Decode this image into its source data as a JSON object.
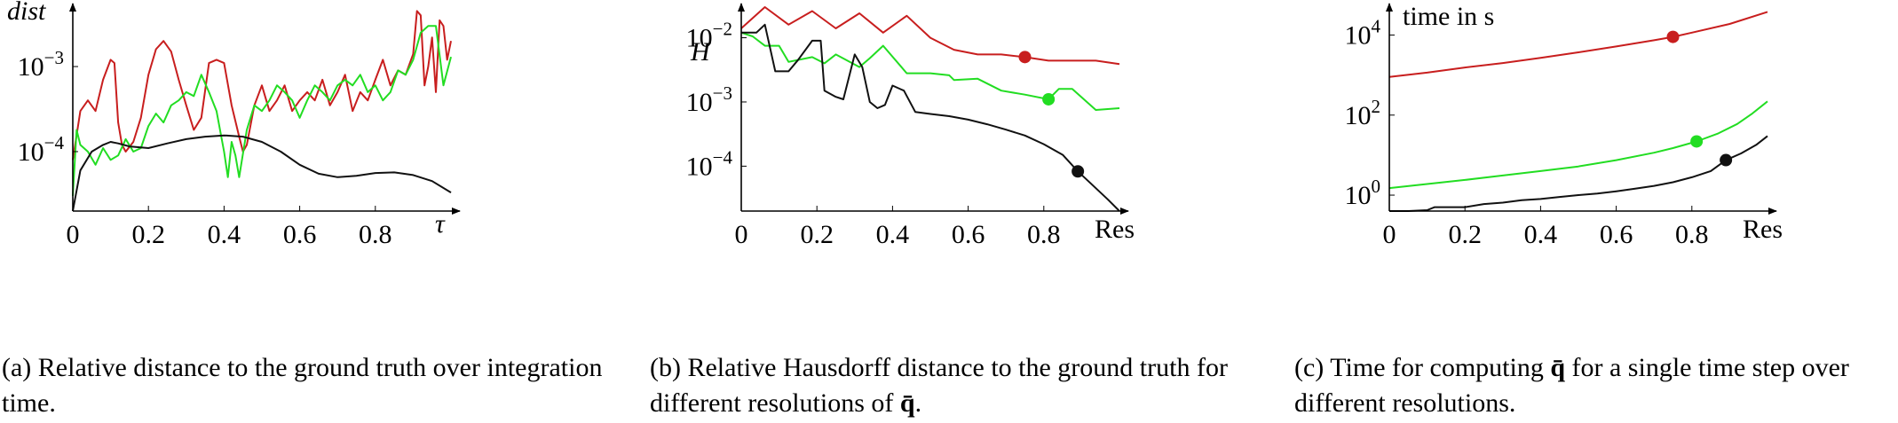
{
  "colors": {
    "red": "#c81e1e",
    "green": "#22dd22",
    "black": "#111111",
    "axis": "#000000"
  },
  "chart_data": [
    {
      "id": "a",
      "type": "line",
      "caption_label": "(a)",
      "caption_text": "Relative distance to the ground truth over integration time.",
      "xlabel": "τ",
      "ylabel": "dist",
      "xscale": "linear",
      "yscale": "log",
      "xlim": [
        0,
        1
      ],
      "ylim": [
        2e-05,
        0.005
      ],
      "xticks": [
        0,
        0.2,
        0.4,
        0.6,
        0.8
      ],
      "xtick_labels": [
        "0",
        "0.2",
        "0.4",
        "0.6",
        "0.8"
      ],
      "yticks": [
        0.0001,
        0.001
      ],
      "ytick_labels": [
        {
          "base": "10",
          "exp": "−4"
        },
        {
          "base": "10",
          "exp": "−3"
        }
      ],
      "series": [
        {
          "color": "red",
          "x": [
            0,
            0.02,
            0.04,
            0.06,
            0.08,
            0.1,
            0.11,
            0.12,
            0.13,
            0.14,
            0.16,
            0.18,
            0.2,
            0.22,
            0.24,
            0.26,
            0.28,
            0.3,
            0.32,
            0.34,
            0.36,
            0.38,
            0.4,
            0.42,
            0.44,
            0.45,
            0.46,
            0.48,
            0.5,
            0.52,
            0.54,
            0.56,
            0.58,
            0.6,
            0.62,
            0.64,
            0.66,
            0.68,
            0.7,
            0.72,
            0.74,
            0.76,
            0.78,
            0.8,
            0.82,
            0.84,
            0.86,
            0.88,
            0.9,
            0.91,
            0.92,
            0.93,
            0.94,
            0.95,
            0.96,
            0.97,
            0.98,
            0.99,
            1.0
          ],
          "y": [
            8e-05,
            0.0003,
            0.0004,
            0.0003,
            0.0007,
            0.0012,
            0.0011,
            0.00022,
            0.00012,
            0.0001,
            0.00013,
            0.00025,
            0.0008,
            0.0016,
            0.002,
            0.0015,
            0.0007,
            0.00035,
            0.00018,
            0.00025,
            0.0011,
            0.0012,
            0.0011,
            0.00035,
            0.00015,
            0.0001,
            0.00012,
            0.00035,
            0.0006,
            0.0003,
            0.0004,
            0.0006,
            0.0003,
            0.0004,
            0.0005,
            0.0004,
            0.0007,
            0.00035,
            0.0005,
            0.0008,
            0.0003,
            0.0005,
            0.0004,
            0.0007,
            0.0012,
            0.0006,
            0.0009,
            0.0008,
            0.0014,
            0.0045,
            0.004,
            0.0006,
            0.001,
            0.0022,
            0.0005,
            0.0035,
            0.003,
            0.0012,
            0.002
          ]
        },
        {
          "color": "green",
          "x": [
            0,
            0.01,
            0.02,
            0.04,
            0.06,
            0.08,
            0.1,
            0.12,
            0.14,
            0.16,
            0.18,
            0.2,
            0.22,
            0.24,
            0.26,
            0.28,
            0.3,
            0.32,
            0.34,
            0.36,
            0.38,
            0.4,
            0.41,
            0.42,
            0.43,
            0.44,
            0.46,
            0.48,
            0.5,
            0.52,
            0.54,
            0.56,
            0.58,
            0.6,
            0.62,
            0.64,
            0.66,
            0.68,
            0.7,
            0.72,
            0.74,
            0.76,
            0.78,
            0.8,
            0.82,
            0.84,
            0.86,
            0.88,
            0.9,
            0.92,
            0.94,
            0.96,
            0.98,
            1.0
          ],
          "y": [
            3e-05,
            0.00018,
            0.00012,
            0.0001,
            7e-05,
            0.00011,
            8e-05,
            9e-05,
            0.00014,
            0.0001,
            0.00011,
            0.0002,
            0.00028,
            0.00022,
            0.00035,
            0.0004,
            0.0005,
            0.00045,
            0.0008,
            0.0005,
            0.0003,
            0.0001,
            5e-05,
            0.00013,
            9e-05,
            5e-05,
            0.00018,
            0.00035,
            0.0003,
            0.0004,
            0.0006,
            0.0005,
            0.0004,
            0.00025,
            0.0004,
            0.0006,
            0.0005,
            0.0004,
            0.0006,
            0.0007,
            0.0006,
            0.0008,
            0.0005,
            0.0006,
            0.0004,
            0.0005,
            0.0009,
            0.0008,
            0.0012,
            0.0025,
            0.003,
            0.003,
            0.0006,
            0.0013
          ]
        },
        {
          "color": "black",
          "x": [
            0,
            0.02,
            0.05,
            0.08,
            0.1,
            0.12,
            0.15,
            0.2,
            0.25,
            0.3,
            0.35,
            0.4,
            0.45,
            0.5,
            0.55,
            0.6,
            0.65,
            0.7,
            0.75,
            0.8,
            0.85,
            0.9,
            0.95,
            1.0
          ],
          "y": [
            2e-05,
            6e-05,
            0.0001,
            0.00012,
            0.00013,
            0.000125,
            0.000115,
            0.00011,
            0.000125,
            0.00014,
            0.00015,
            0.000155,
            0.00015,
            0.00013,
            0.0001,
            7e-05,
            5.5e-05,
            5e-05,
            5.2e-05,
            5.6e-05,
            5.7e-05,
            5.3e-05,
            4.5e-05,
            3.3e-05
          ]
        }
      ]
    },
    {
      "id": "b",
      "type": "line",
      "caption_label": "(b)",
      "caption_text": "Relative Hausdorff distance to the ground truth for different resolutions of",
      "caption_symbol": "q̄̄",
      "caption_end": ".",
      "xlabel": "Res",
      "ylabel": "H",
      "xscale": "linear",
      "yscale": "log",
      "xlim": [
        0,
        1
      ],
      "ylim": [
        2e-05,
        0.03
      ],
      "xticks": [
        0,
        0.2,
        0.4,
        0.6,
        0.8
      ],
      "xtick_labels": [
        "0",
        "0.2",
        "0.4",
        "0.6",
        "0.8"
      ],
      "yticks": [
        0.0001,
        0.001,
        0.01
      ],
      "ytick_labels": [
        {
          "base": "10",
          "exp": "−4"
        },
        {
          "base": "10",
          "exp": "−3"
        },
        {
          "base": "10",
          "exp": "−2"
        }
      ],
      "series": [
        {
          "color": "red",
          "marker_at": 0.75,
          "x": [
            0,
            0.0625,
            0.125,
            0.1875,
            0.25,
            0.3125,
            0.375,
            0.4375,
            0.5,
            0.5625,
            0.625,
            0.6875,
            0.75,
            0.8125,
            0.875,
            0.9375,
            1.0
          ],
          "y": [
            0.014,
            0.03,
            0.016,
            0.026,
            0.014,
            0.024,
            0.012,
            0.022,
            0.01,
            0.0065,
            0.0055,
            0.0055,
            0.005,
            0.0044,
            0.0044,
            0.0044,
            0.0039
          ]
        },
        {
          "color": "green",
          "marker_at": 0.8125,
          "x": [
            0,
            0.03,
            0.0625,
            0.1,
            0.125,
            0.1875,
            0.22,
            0.25,
            0.3125,
            0.34,
            0.375,
            0.4375,
            0.5,
            0.55,
            0.5625,
            0.625,
            0.6875,
            0.75,
            0.8125,
            0.84,
            0.875,
            0.9375,
            1.0
          ],
          "y": [
            0.012,
            0.0105,
            0.0075,
            0.0075,
            0.0042,
            0.005,
            0.004,
            0.0055,
            0.0035,
            0.0048,
            0.0075,
            0.0028,
            0.0028,
            0.0026,
            0.0022,
            0.0023,
            0.0015,
            0.0013,
            0.0011,
            0.0016,
            0.0016,
            0.00075,
            0.0008
          ]
        },
        {
          "color": "black",
          "marker_at": 0.89,
          "x": [
            0,
            0.04,
            0.0625,
            0.09,
            0.125,
            0.15,
            0.1875,
            0.21,
            0.22,
            0.25,
            0.27,
            0.3,
            0.32,
            0.34,
            0.36,
            0.38,
            0.4,
            0.43,
            0.46,
            0.5,
            0.55,
            0.6,
            0.65,
            0.7,
            0.75,
            0.8,
            0.85,
            0.89,
            0.93,
            0.97,
            1.0
          ],
          "y": [
            0.012,
            0.012,
            0.016,
            0.003,
            0.003,
            0.0045,
            0.009,
            0.009,
            0.0015,
            0.0012,
            0.0011,
            0.0055,
            0.0035,
            0.001,
            0.0008,
            0.0009,
            0.0018,
            0.0015,
            0.0007,
            0.00065,
            0.0006,
            0.00053,
            0.00045,
            0.00037,
            0.0003,
            0.00022,
            0.00015,
            8.3e-05,
            5e-05,
            3e-05,
            2e-05
          ]
        }
      ]
    },
    {
      "id": "c",
      "type": "line",
      "caption_label": "(c)",
      "caption_text": "Time for computing",
      "caption_symbol": "q̄̄",
      "caption_end": "for a single time step over different resolutions.",
      "xlabel": "Res",
      "ylabel": "time in s",
      "xscale": "linear",
      "yscale": "log",
      "xlim": [
        0,
        1
      ],
      "ylim": [
        0.4,
        50000
      ],
      "xticks": [
        0,
        0.2,
        0.4,
        0.6,
        0.8
      ],
      "xtick_labels": [
        "0",
        "0.2",
        "0.4",
        "0.6",
        "0.8"
      ],
      "yticks": [
        1,
        100,
        10000
      ],
      "ytick_labels": [
        {
          "base": "10",
          "exp": "0"
        },
        {
          "base": "10",
          "exp": "2"
        },
        {
          "base": "10",
          "exp": "4"
        }
      ],
      "series": [
        {
          "color": "red",
          "marker_at": 0.75,
          "x": [
            0,
            0.1,
            0.2,
            0.3,
            0.4,
            0.5,
            0.6,
            0.7,
            0.75,
            0.8,
            0.9,
            1.0
          ],
          "y": [
            900,
            1150,
            1550,
            2000,
            2700,
            3700,
            5200,
            7400,
            9000,
            11500,
            19000,
            38000
          ]
        },
        {
          "color": "green",
          "marker_at": 0.8125,
          "x": [
            0,
            0.1,
            0.2,
            0.3,
            0.4,
            0.5,
            0.6,
            0.7,
            0.75,
            0.8125,
            0.87,
            0.92,
            0.96,
            1.0
          ],
          "y": [
            1.5,
            1.9,
            2.4,
            3.1,
            4.0,
            5.2,
            7.5,
            11.5,
            15,
            22,
            35,
            60,
            110,
            220
          ]
        },
        {
          "color": "black",
          "marker_at": 0.89,
          "x": [
            0,
            0.05,
            0.1,
            0.12,
            0.2,
            0.25,
            0.3,
            0.35,
            0.4,
            0.45,
            0.5,
            0.55,
            0.6,
            0.65,
            0.7,
            0.75,
            0.8,
            0.85,
            0.89,
            0.93,
            0.97,
            1.0
          ],
          "y": [
            0.35,
            0.38,
            0.42,
            0.5,
            0.5,
            0.6,
            0.65,
            0.75,
            0.8,
            0.9,
            1.0,
            1.1,
            1.25,
            1.45,
            1.7,
            2.1,
            2.8,
            4.0,
            7.5,
            11,
            18,
            30
          ]
        }
      ]
    }
  ]
}
